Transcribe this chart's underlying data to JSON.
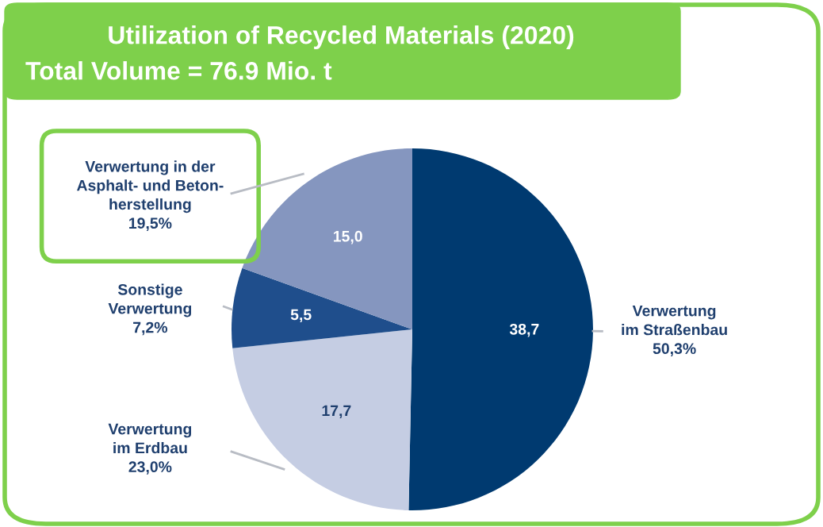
{
  "chart_data": {
    "type": "pie",
    "title": "Utilization of Recycled Materials (2020)",
    "subtitle": "Total Volume = 76.9 Mio. t",
    "categories": [
      "Verwertung\nim Straßenbau\n50,3%",
      "Verwertung\nim Erdbau\n23,0%",
      "Sonstige\nVerwertung\n7,2%",
      "Verwertung in der\nAsphalt- und Beton-\nherstellung\n19,5%"
    ],
    "values": [
      38.7,
      17.7,
      5.5,
      15.0
    ],
    "value_labels": [
      "38,7",
      "17,7",
      "5,5",
      "15,0"
    ],
    "colors": [
      "#003a70",
      "#c5cde3",
      "#1f4e8c",
      "#8596bf"
    ]
  }
}
